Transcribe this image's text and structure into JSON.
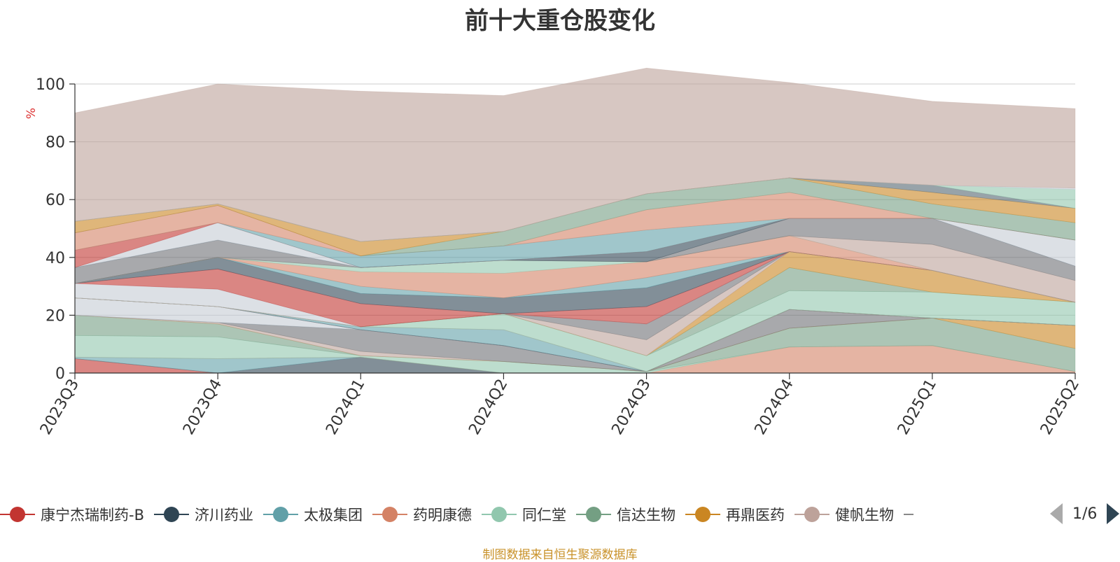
{
  "chart_data": {
    "type": "area",
    "stacked": true,
    "title": "前十大重仓股变化",
    "ylabel": "%",
    "ylim": [
      0,
      100
    ],
    "yticks": [
      0,
      20,
      40,
      60,
      80,
      100
    ],
    "categories": [
      "2023Q3",
      "2023Q4",
      "2024Q1",
      "2024Q2",
      "2024Q3",
      "2024Q4",
      "2025Q1",
      "2025Q2"
    ],
    "grid": true,
    "legend_position": "bottom",
    "series": [
      {
        "name": "康宁杰瑞制药-B",
        "color": "#c23531",
        "values": [
          5.0,
          0,
          0,
          0,
          0,
          0,
          0,
          0
        ]
      },
      {
        "name": "济川药业",
        "color": "#2f4554",
        "values": [
          0,
          0,
          5.5,
          0,
          0,
          0,
          0,
          0
        ]
      },
      {
        "name": "太极集团",
        "color": "#61a0a8",
        "values": [
          0.5,
          5.0,
          0,
          0,
          0,
          0,
          0,
          0
        ]
      },
      {
        "name": "药明康德",
        "color": "#d48265",
        "values": [
          0,
          0,
          0,
          0,
          0,
          9.0,
          9.5,
          0.5
        ]
      },
      {
        "name": "同仁堂",
        "color": "#91c7ae",
        "values": [
          7.5,
          7.5,
          0.5,
          4.0,
          0.5,
          0,
          0,
          0
        ]
      },
      {
        "name": "信达生物",
        "color": "#749f83",
        "values": [
          7.0,
          4.5,
          0,
          0,
          0,
          6.5,
          9.5,
          8.0
        ]
      },
      {
        "name": "再鼎医药",
        "color": "#ca8622",
        "values": [
          0,
          0,
          0,
          0,
          0,
          0,
          0,
          8.0
        ]
      },
      {
        "name": "健帆生物",
        "color": "#bda29a",
        "values": [
          0,
          0.5,
          1.5,
          0,
          0,
          0,
          0,
          0
        ]
      },
      {
        "name": "",
        "color": "#6e7074",
        "values": [
          0,
          0,
          7.5,
          5.5,
          0,
          6.5,
          0,
          0
        ]
      },
      {
        "name": "",
        "color": "#546570",
        "values": [
          0,
          0,
          0,
          0,
          0,
          0,
          0,
          0
        ]
      },
      {
        "name": "",
        "color": "#c4ccd3",
        "values": [
          6.0,
          5.5,
          0,
          0,
          0,
          0,
          0,
          0
        ]
      },
      {
        "name": "",
        "color": "#c23531",
        "values": [
          0,
          0,
          0,
          0,
          0,
          0,
          0,
          0
        ]
      },
      {
        "name": "",
        "color": "#2f4554",
        "values": [
          0,
          0,
          0,
          0,
          0,
          0,
          0,
          0
        ]
      },
      {
        "name": "",
        "color": "#61a0a8",
        "values": [
          0,
          0,
          1.0,
          5.5,
          0,
          0,
          0,
          0
        ]
      },
      {
        "name": "",
        "color": "#d48265",
        "values": [
          0,
          0,
          0,
          0,
          0,
          0,
          0,
          0
        ]
      },
      {
        "name": "",
        "color": "#91c7ae",
        "values": [
          0,
          0,
          0,
          5.5,
          5.5,
          6.5,
          9.0,
          8.0
        ]
      },
      {
        "name": "",
        "color": "#749f83",
        "values": [
          0,
          0,
          0,
          0,
          0,
          8.0,
          0,
          0
        ]
      },
      {
        "name": "",
        "color": "#ca8622",
        "values": [
          0,
          0,
          0,
          0,
          0,
          5.5,
          7.5,
          0
        ]
      },
      {
        "name": "",
        "color": "#bda29a",
        "values": [
          0,
          0,
          0,
          0,
          5.5,
          0,
          0,
          0
        ]
      },
      {
        "name": "",
        "color": "#6e7074",
        "values": [
          0,
          0,
          0,
          0,
          5.5,
          0,
          0,
          0
        ]
      },
      {
        "name": "",
        "color": "#c4ccd3",
        "values": [
          5.0,
          6.0,
          0,
          0,
          0,
          0,
          0,
          0
        ]
      },
      {
        "name": "",
        "color": "#c23531",
        "values": [
          0,
          7.0,
          8.0,
          0,
          6.0,
          0,
          0,
          0
        ]
      },
      {
        "name": "",
        "color": "#2f4554",
        "values": [
          0,
          4.0,
          3.5,
          5.5,
          6.5,
          0,
          0,
          0
        ]
      },
      {
        "name": "",
        "color": "#61a0a8",
        "values": [
          0,
          0,
          2.5,
          0,
          3.5,
          0,
          0,
          0
        ]
      },
      {
        "name": "",
        "color": "#d48265",
        "values": [
          0,
          0,
          5.0,
          8.5,
          5.5,
          5.5,
          0,
          0
        ]
      },
      {
        "name": "",
        "color": "#91c7ae",
        "values": [
          0,
          0,
          1.5,
          4.5,
          0,
          0,
          0,
          0
        ]
      },
      {
        "name": "",
        "color": "#bda29a",
        "values": [
          0,
          0,
          0,
          0,
          0,
          0,
          9.0,
          7.5
        ]
      },
      {
        "name": "",
        "color": "#6e7074",
        "values": [
          5.5,
          6.0,
          0,
          0,
          0,
          6.0,
          9.0,
          5.0
        ]
      },
      {
        "name": "",
        "color": "#2f4554",
        "values": [
          0,
          0,
          0,
          0,
          3.5,
          0,
          0,
          0
        ]
      },
      {
        "name": "",
        "color": "#c4ccd3",
        "values": [
          0,
          6.0,
          0,
          0,
          0,
          0,
          0,
          9.0
        ]
      },
      {
        "name": "",
        "color": "#c23531",
        "values": [
          6.0,
          0,
          0,
          0,
          0,
          0,
          0,
          0
        ]
      },
      {
        "name": "",
        "color": "#61a0a8",
        "values": [
          0,
          0,
          4.0,
          5.0,
          7.5,
          0,
          0,
          0
        ]
      },
      {
        "name": "",
        "color": "#d48265",
        "values": [
          6.0,
          6.0,
          0,
          0,
          7.0,
          9.0,
          0,
          0
        ]
      },
      {
        "name": "",
        "color": "#749f83",
        "values": [
          0,
          0,
          0,
          5.0,
          5.5,
          5.0,
          5.0,
          6.0
        ]
      },
      {
        "name": "",
        "color": "#ca8622",
        "values": [
          4.0,
          0.5,
          5.0,
          0,
          0,
          0,
          4.0,
          5.0
        ]
      },
      {
        "name": "",
        "color": "#546570",
        "values": [
          0,
          0,
          0,
          0,
          0,
          0,
          2.5,
          0
        ]
      },
      {
        "name": "",
        "color": "#91c7ae",
        "values": [
          0,
          0,
          0,
          0,
          0,
          0,
          0,
          6.5
        ]
      },
      {
        "name": "",
        "color": "#c4ccd3",
        "values": [
          0,
          0,
          0,
          0,
          0,
          0,
          0,
          0.5
        ]
      },
      {
        "name": "",
        "color": "#bda29a",
        "values": [
          37.5,
          41.5,
          52.0,
          47.0,
          43.5,
          33.0,
          29.0,
          27.5
        ]
      }
    ]
  },
  "legend": {
    "items": [
      {
        "label": "康宁杰瑞制药-B",
        "color": "#c23531"
      },
      {
        "label": "济川药业",
        "color": "#2f4554"
      },
      {
        "label": "太极集团",
        "color": "#61a0a8"
      },
      {
        "label": "药明康德",
        "color": "#d48265"
      },
      {
        "label": "同仁堂",
        "color": "#91c7ae"
      },
      {
        "label": "信达生物",
        "color": "#749f83"
      },
      {
        "label": "再鼎医药",
        "color": "#ca8622"
      },
      {
        "label": "健帆生物",
        "color": "#bda29a"
      }
    ],
    "page": "1/6"
  },
  "source": "制图数据来自恒生聚源数据库"
}
